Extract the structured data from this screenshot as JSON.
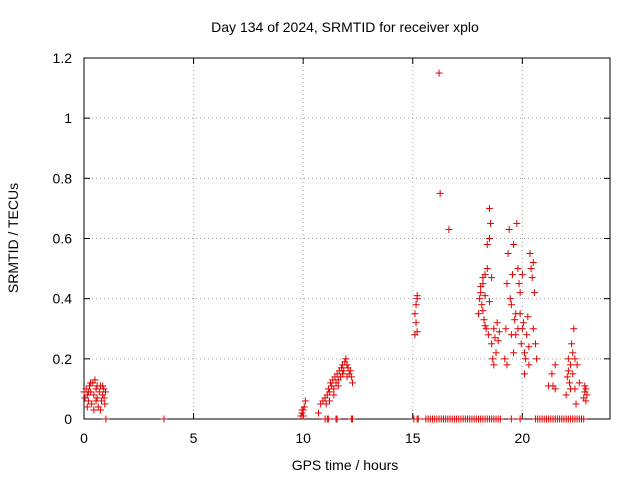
{
  "chart_data": {
    "type": "scatter",
    "title": "Day 134 of 2024, SRMTID for receiver xplo",
    "xlabel": "GPS time / hours",
    "ylabel": "SRMTID / TECUs",
    "xlim": [
      0,
      24
    ],
    "ylim": [
      0,
      1.2
    ],
    "x_ticks": [
      0,
      5,
      10,
      15,
      20
    ],
    "x_tick_labels": [
      "0",
      "5",
      "10",
      "15",
      "20"
    ],
    "y_ticks": [
      0,
      0.2,
      0.4,
      0.6,
      0.8,
      1.0,
      1.2
    ],
    "y_tick_labels": [
      "0",
      "0.2",
      "0.4",
      "0.6",
      "0.8",
      "1",
      "1.2"
    ],
    "grid": true,
    "marker": "+",
    "series": [
      {
        "name": "SRMTID",
        "color": "#e00000",
        "points": [
          [
            0.0,
            0.09
          ],
          [
            0.05,
            0.07
          ],
          [
            0.1,
            0.1
          ],
          [
            0.15,
            0.08
          ],
          [
            0.2,
            0.06
          ],
          [
            0.25,
            0.11
          ],
          [
            0.3,
            0.09
          ],
          [
            0.35,
            0.05
          ],
          [
            0.4,
            0.12
          ],
          [
            0.45,
            0.08
          ],
          [
            0.5,
            0.13
          ],
          [
            0.55,
            0.1
          ],
          [
            0.6,
            0.07
          ],
          [
            0.65,
            0.04
          ],
          [
            0.7,
            0.09
          ],
          [
            0.75,
            0.11
          ],
          [
            0.8,
            0.06
          ],
          [
            0.85,
            0.08
          ],
          [
            0.9,
            0.1
          ],
          [
            0.95,
            0.05
          ],
          [
            0.15,
            0.04
          ],
          [
            0.3,
            0.12
          ],
          [
            0.45,
            0.03
          ],
          [
            0.6,
            0.11
          ],
          [
            0.75,
            0.03
          ],
          [
            0.85,
            0.11
          ],
          [
            0.92,
            0.07
          ],
          [
            0.98,
            0.09
          ],
          [
            0.2,
            0.09
          ],
          [
            0.55,
            0.06
          ],
          [
            1.0,
            0.0
          ],
          [
            3.65,
            0.0
          ],
          [
            9.9,
            0.01
          ],
          [
            9.95,
            0.02
          ],
          [
            10.0,
            0.03
          ],
          [
            10.05,
            0.04
          ],
          [
            10.1,
            0.06
          ],
          [
            10.0,
            0.01
          ],
          [
            9.95,
            0.03
          ],
          [
            10.7,
            0.02
          ],
          [
            10.8,
            0.05
          ],
          [
            10.9,
            0.06
          ],
          [
            11.0,
            0.07
          ],
          [
            11.05,
            0.05
          ],
          [
            11.1,
            0.08
          ],
          [
            11.15,
            0.1
          ],
          [
            11.2,
            0.09
          ],
          [
            11.25,
            0.12
          ],
          [
            11.3,
            0.11
          ],
          [
            11.35,
            0.13
          ],
          [
            11.4,
            0.1
          ],
          [
            11.45,
            0.14
          ],
          [
            11.5,
            0.12
          ],
          [
            11.55,
            0.15
          ],
          [
            11.6,
            0.13
          ],
          [
            11.65,
            0.16
          ],
          [
            11.7,
            0.14
          ],
          [
            11.75,
            0.17
          ],
          [
            11.8,
            0.18
          ],
          [
            11.85,
            0.16
          ],
          [
            11.9,
            0.19
          ],
          [
            11.95,
            0.2
          ],
          [
            12.0,
            0.18
          ],
          [
            12.05,
            0.17
          ],
          [
            12.1,
            0.15
          ],
          [
            12.15,
            0.16
          ],
          [
            12.2,
            0.14
          ],
          [
            12.25,
            0.12
          ],
          [
            11.2,
            0.06
          ],
          [
            11.4,
            0.08
          ],
          [
            11.6,
            0.11
          ],
          [
            11.8,
            0.15
          ],
          [
            12.0,
            0.14
          ],
          [
            15.1,
            0.35
          ],
          [
            15.15,
            0.38
          ],
          [
            15.2,
            0.4
          ],
          [
            15.2,
            0.41
          ],
          [
            15.1,
            0.28
          ],
          [
            15.2,
            0.29
          ],
          [
            15.15,
            0.32
          ],
          [
            16.2,
            1.15
          ],
          [
            16.25,
            0.75
          ],
          [
            16.65,
            0.63
          ],
          [
            18.0,
            0.35
          ],
          [
            18.05,
            0.4
          ],
          [
            18.1,
            0.42
          ],
          [
            18.15,
            0.38
          ],
          [
            18.2,
            0.45
          ],
          [
            18.25,
            0.33
          ],
          [
            18.3,
            0.48
          ],
          [
            18.35,
            0.3
          ],
          [
            18.4,
            0.58
          ],
          [
            18.45,
            0.28
          ],
          [
            18.5,
            0.7
          ],
          [
            18.55,
            0.65
          ],
          [
            18.6,
            0.25
          ],
          [
            18.65,
            0.2
          ],
          [
            18.7,
            0.3
          ],
          [
            18.75,
            0.27
          ],
          [
            18.8,
            0.22
          ],
          [
            18.85,
            0.32
          ],
          [
            18.9,
            0.26
          ],
          [
            18.95,
            0.29
          ],
          [
            18.1,
            0.44
          ],
          [
            18.2,
            0.36
          ],
          [
            18.3,
            0.31
          ],
          [
            18.4,
            0.5
          ],
          [
            18.5,
            0.6
          ],
          [
            18.6,
            0.47
          ],
          [
            18.7,
            0.18
          ],
          [
            18.5,
            0.39
          ],
          [
            18.3,
            0.41
          ],
          [
            18.2,
            0.47
          ],
          [
            19.2,
            0.2
          ],
          [
            19.25,
            0.3
          ],
          [
            19.3,
            0.45
          ],
          [
            19.35,
            0.55
          ],
          [
            19.4,
            0.63
          ],
          [
            19.45,
            0.4
          ],
          [
            19.5,
            0.38
          ],
          [
            19.55,
            0.48
          ],
          [
            19.6,
            0.58
          ],
          [
            19.65,
            0.33
          ],
          [
            19.7,
            0.28
          ],
          [
            19.75,
            0.65
          ],
          [
            19.8,
            0.5
          ],
          [
            19.85,
            0.45
          ],
          [
            19.9,
            0.35
          ],
          [
            19.95,
            0.25
          ],
          [
            20.0,
            0.3
          ],
          [
            20.05,
            0.32
          ],
          [
            20.1,
            0.22
          ],
          [
            20.15,
            0.2
          ],
          [
            20.2,
            0.28
          ],
          [
            20.25,
            0.34
          ],
          [
            20.3,
            0.18
          ],
          [
            20.35,
            0.55
          ],
          [
            20.4,
            0.5
          ],
          [
            20.45,
            0.47
          ],
          [
            20.5,
            0.52
          ],
          [
            20.55,
            0.42
          ],
          [
            20.6,
            0.25
          ],
          [
            20.65,
            0.2
          ],
          [
            19.3,
            0.18
          ],
          [
            19.5,
            0.28
          ],
          [
            19.7,
            0.35
          ],
          [
            19.9,
            0.42
          ],
          [
            20.1,
            0.15
          ],
          [
            20.3,
            0.24
          ],
          [
            20.5,
            0.3
          ],
          [
            19.6,
            0.22
          ],
          [
            19.8,
            0.3
          ],
          [
            20.0,
            0.48
          ],
          [
            21.2,
            0.11
          ],
          [
            21.35,
            0.15
          ],
          [
            21.5,
            0.18
          ],
          [
            21.4,
            0.11
          ],
          [
            21.5,
            0.1
          ],
          [
            22.0,
            0.08
          ],
          [
            22.05,
            0.14
          ],
          [
            22.1,
            0.2
          ],
          [
            22.15,
            0.12
          ],
          [
            22.2,
            0.18
          ],
          [
            22.25,
            0.25
          ],
          [
            22.3,
            0.15
          ],
          [
            22.35,
            0.3
          ],
          [
            22.4,
            0.1
          ],
          [
            22.45,
            0.05
          ],
          [
            22.5,
            0.18
          ],
          [
            22.3,
            0.22
          ],
          [
            22.2,
            0.1
          ],
          [
            22.1,
            0.16
          ],
          [
            22.4,
            0.2
          ],
          [
            22.6,
            0.12
          ],
          [
            22.8,
            0.07
          ],
          [
            22.85,
            0.09
          ],
          [
            22.9,
            0.1
          ],
          [
            22.95,
            0.08
          ],
          [
            22.85,
            0.11
          ],
          [
            22.9,
            0.06
          ],
          [
            11.0,
            0.0
          ],
          [
            11.1,
            0.0
          ],
          [
            11.15,
            0.0
          ],
          [
            11.5,
            0.0
          ],
          [
            11.55,
            0.0
          ],
          [
            12.2,
            0.0
          ],
          [
            12.25,
            0.0
          ],
          [
            15.05,
            0.0
          ],
          [
            15.2,
            0.0
          ],
          [
            15.25,
            0.0
          ],
          [
            15.6,
            0.0
          ],
          [
            15.7,
            0.0
          ],
          [
            15.8,
            0.0
          ],
          [
            15.9,
            0.0
          ],
          [
            16.0,
            0.0
          ],
          [
            16.1,
            0.0
          ],
          [
            16.2,
            0.0
          ],
          [
            16.3,
            0.0
          ],
          [
            16.4,
            0.0
          ],
          [
            16.5,
            0.0
          ],
          [
            16.6,
            0.0
          ],
          [
            16.7,
            0.0
          ],
          [
            16.8,
            0.0
          ],
          [
            16.9,
            0.0
          ],
          [
            17.0,
            0.0
          ],
          [
            17.1,
            0.0
          ],
          [
            17.2,
            0.0
          ],
          [
            17.3,
            0.0
          ],
          [
            17.4,
            0.0
          ],
          [
            17.5,
            0.0
          ],
          [
            17.6,
            0.0
          ],
          [
            17.7,
            0.0
          ],
          [
            17.8,
            0.0
          ],
          [
            17.9,
            0.0
          ],
          [
            18.0,
            0.0
          ],
          [
            18.1,
            0.0
          ],
          [
            18.2,
            0.0
          ],
          [
            18.3,
            0.0
          ],
          [
            18.4,
            0.0
          ],
          [
            18.5,
            0.0
          ],
          [
            18.6,
            0.0
          ],
          [
            18.7,
            0.0
          ],
          [
            18.8,
            0.0
          ],
          [
            18.9,
            0.0
          ],
          [
            19.0,
            0.0
          ],
          [
            19.5,
            0.0
          ],
          [
            19.9,
            0.0
          ],
          [
            20.6,
            0.0
          ],
          [
            20.7,
            0.0
          ],
          [
            20.8,
            0.0
          ],
          [
            20.9,
            0.0
          ],
          [
            21.0,
            0.0
          ],
          [
            21.1,
            0.0
          ],
          [
            21.2,
            0.0
          ],
          [
            21.3,
            0.0
          ],
          [
            21.4,
            0.0
          ],
          [
            21.5,
            0.0
          ],
          [
            21.6,
            0.0
          ],
          [
            21.7,
            0.0
          ],
          [
            21.8,
            0.0
          ],
          [
            21.9,
            0.0
          ],
          [
            22.0,
            0.0
          ],
          [
            22.1,
            0.0
          ],
          [
            22.2,
            0.0
          ],
          [
            22.3,
            0.0
          ],
          [
            22.4,
            0.0
          ],
          [
            22.5,
            0.0
          ],
          [
            22.6,
            0.0
          ],
          [
            22.7,
            0.0
          ],
          [
            22.8,
            0.0
          ]
        ]
      }
    ]
  }
}
